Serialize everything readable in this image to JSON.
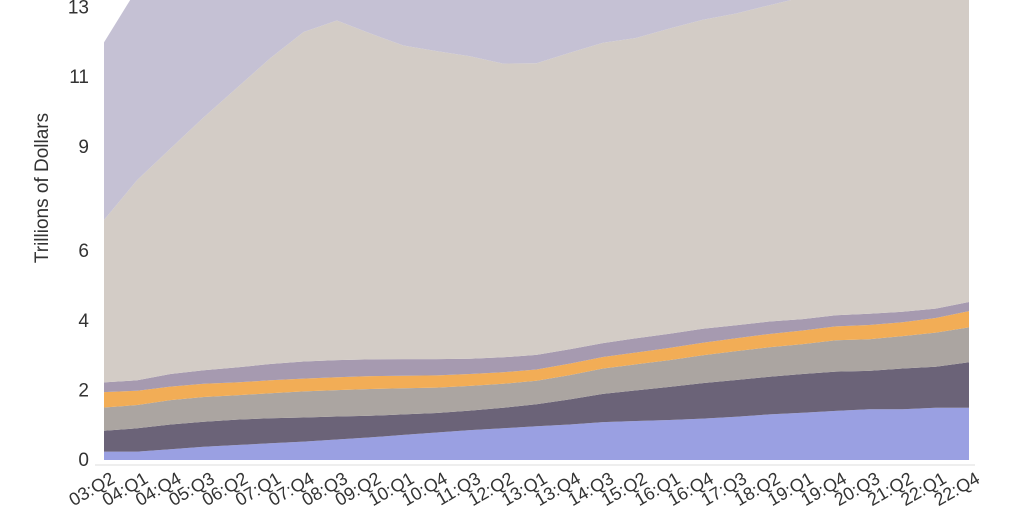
{
  "chart_data": {
    "type": "area",
    "stacked": true,
    "title": "",
    "xlabel": "",
    "ylabel": "Trillions of Dollars",
    "ylim": [
      0,
      14
    ],
    "yticks": [
      0,
      2,
      4,
      6,
      9,
      11,
      13
    ],
    "grid": false,
    "legend": "none",
    "x": [
      "2003:Q2",
      "2004:Q1",
      "2004:Q4",
      "2005:Q3",
      "2006:Q2",
      "2007:Q1",
      "2007:Q4",
      "2008:Q3",
      "2009:Q2",
      "2010:Q1",
      "2010:Q4",
      "2011:Q3",
      "2012:Q2",
      "2013:Q1",
      "2013:Q4",
      "2014:Q3",
      "2015:Q2",
      "2016:Q1",
      "2016:Q4",
      "2017:Q3",
      "2018:Q2",
      "2019:Q1",
      "2019:Q4",
      "2020:Q3",
      "2021:Q2",
      "2022:Q1",
      "2022:Q4"
    ],
    "xtick_labels": [
      "03:Q2",
      "04:Q1",
      "04:Q4",
      "05:Q3",
      "06:Q2",
      "07:Q1",
      "07:Q4",
      "08:Q3",
      "09:Q2",
      "10:Q1",
      "10:Q4",
      "11:Q3",
      "12:Q2",
      "13:Q1",
      "13:Q4",
      "14:Q3",
      "15:Q2",
      "16:Q1",
      "16:Q4",
      "17:Q3",
      "18:Q2",
      "19:Q1",
      "19:Q4",
      "20:Q3",
      "21:Q2",
      "22:Q1",
      "22:Q4"
    ],
    "colors": [
      "#9aa0e2",
      "#6b6378",
      "#aba5a1",
      "#f2ad56",
      "#a69ab0",
      "#d3ccc6",
      "#c5c1d4"
    ],
    "series": [
      {
        "values": [
          0.24,
          0.24,
          0.31,
          0.38,
          0.43,
          0.48,
          0.53,
          0.59,
          0.65,
          0.72,
          0.79,
          0.86,
          0.91,
          0.97,
          1.02,
          1.09,
          1.12,
          1.15,
          1.19,
          1.24,
          1.31,
          1.36,
          1.41,
          1.46,
          1.46,
          1.5,
          1.5
        ]
      },
      {
        "values": [
          0.6,
          0.67,
          0.71,
          0.72,
          0.73,
          0.72,
          0.69,
          0.66,
          0.62,
          0.59,
          0.56,
          0.56,
          0.59,
          0.63,
          0.72,
          0.81,
          0.88,
          0.95,
          1.02,
          1.06,
          1.08,
          1.11,
          1.13,
          1.1,
          1.17,
          1.18,
          1.31
        ]
      },
      {
        "values": [
          0.67,
          0.67,
          0.7,
          0.71,
          0.7,
          0.72,
          0.75,
          0.76,
          0.77,
          0.75,
          0.73,
          0.71,
          0.69,
          0.68,
          0.7,
          0.73,
          0.75,
          0.77,
          0.8,
          0.83,
          0.85,
          0.86,
          0.9,
          0.91,
          0.93,
          0.98,
          1.0
        ]
      },
      {
        "values": [
          0.44,
          0.41,
          0.39,
          0.38,
          0.37,
          0.37,
          0.37,
          0.37,
          0.37,
          0.36,
          0.35,
          0.34,
          0.33,
          0.32,
          0.33,
          0.33,
          0.34,
          0.35,
          0.36,
          0.37,
          0.38,
          0.39,
          0.4,
          0.41,
          0.4,
          0.42,
          0.47
        ]
      },
      {
        "values": [
          0.28,
          0.3,
          0.36,
          0.39,
          0.43,
          0.47,
          0.49,
          0.49,
          0.48,
          0.48,
          0.47,
          0.44,
          0.43,
          0.42,
          0.41,
          0.4,
          0.41,
          0.41,
          0.4,
          0.37,
          0.36,
          0.33,
          0.32,
          0.32,
          0.3,
          0.27,
          0.26
        ]
      },
      {
        "values": [
          4.67,
          5.76,
          6.48,
          7.27,
          8.04,
          8.79,
          9.47,
          9.76,
          9.37,
          9.01,
          8.85,
          8.69,
          8.44,
          8.38,
          8.52,
          8.63,
          8.63,
          8.77,
          8.88,
          8.96,
          9.09,
          9.25,
          9.39,
          9.55,
          9.74,
          9.77,
          9.8
        ]
      },
      {
        "values": [
          5.1,
          5.5,
          5.2,
          4.6,
          3.8,
          3.0,
          2.5,
          2.2,
          2.5,
          2.8,
          2.9,
          2.9,
          2.7,
          2.7,
          2.4,
          2.3,
          2.1,
          1.8,
          1.6,
          1.4,
          1.2,
          1.0,
          0.8,
          0.5,
          0.3,
          0.2,
          0.1
        ]
      }
    ]
  }
}
